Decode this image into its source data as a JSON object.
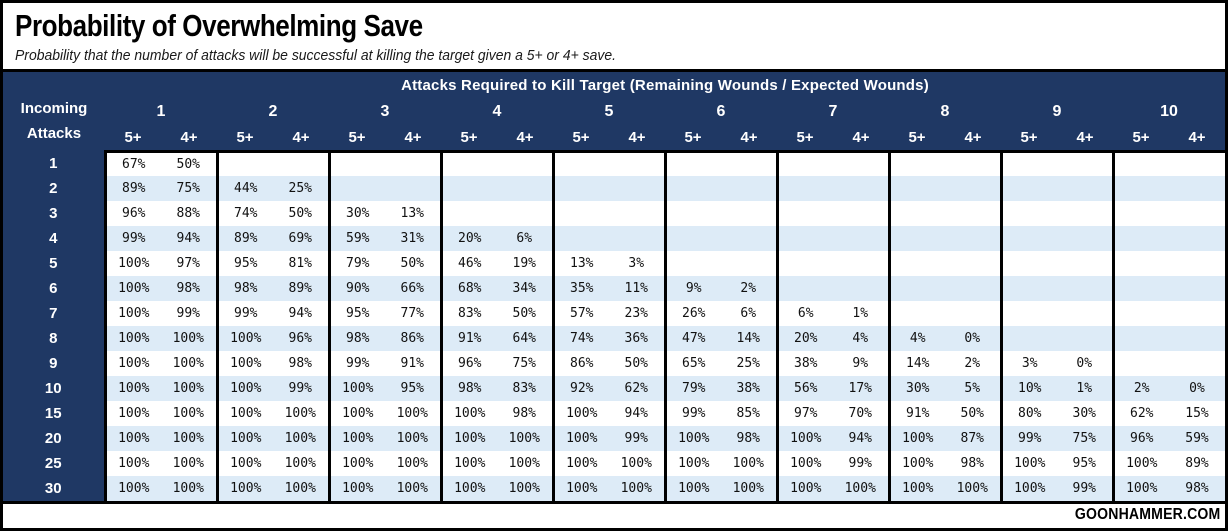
{
  "title": "Probability of Overwhelming Save",
  "subtitle": "Probability that the number of attacks will be successful at killing the target given a 5+ or 4+ save.",
  "footer": {
    "brand": "GOONHAMMER.COM"
  },
  "colors": {
    "header_navy": "#1F3864",
    "stripe_blue": "#DDEBF7",
    "border_black": "#000000",
    "background_white": "#FFFFFF"
  },
  "chart_data": {
    "type": "table",
    "title": "Probability of Overwhelming Save",
    "col_axis_title": "Attacks Required to Kill Target (Remaining Wounds / Expected Wounds)",
    "row_axis": [
      "Incoming",
      "Attacks"
    ],
    "column_groups": [
      "1",
      "2",
      "3",
      "4",
      "5",
      "6",
      "7",
      "8",
      "9",
      "10"
    ],
    "sub_columns": [
      "5+",
      "4+"
    ],
    "rows": [
      {
        "label": "1",
        "cells": [
          "67%",
          "50%",
          "",
          "",
          "",
          "",
          "",
          "",
          "",
          "",
          "",
          "",
          "",
          "",
          "",
          "",
          "",
          "",
          "",
          ""
        ]
      },
      {
        "label": "2",
        "cells": [
          "89%",
          "75%",
          "44%",
          "25%",
          "",
          "",
          "",
          "",
          "",
          "",
          "",
          "",
          "",
          "",
          "",
          "",
          "",
          "",
          "",
          ""
        ]
      },
      {
        "label": "3",
        "cells": [
          "96%",
          "88%",
          "74%",
          "50%",
          "30%",
          "13%",
          "",
          "",
          "",
          "",
          "",
          "",
          "",
          "",
          "",
          "",
          "",
          "",
          "",
          ""
        ]
      },
      {
        "label": "4",
        "cells": [
          "99%",
          "94%",
          "89%",
          "69%",
          "59%",
          "31%",
          "20%",
          "6%",
          "",
          "",
          "",
          "",
          "",
          "",
          "",
          "",
          "",
          "",
          "",
          ""
        ]
      },
      {
        "label": "5",
        "cells": [
          "100%",
          "97%",
          "95%",
          "81%",
          "79%",
          "50%",
          "46%",
          "19%",
          "13%",
          "3%",
          "",
          "",
          "",
          "",
          "",
          "",
          "",
          "",
          "",
          ""
        ]
      },
      {
        "label": "6",
        "cells": [
          "100%",
          "98%",
          "98%",
          "89%",
          "90%",
          "66%",
          "68%",
          "34%",
          "35%",
          "11%",
          "9%",
          "2%",
          "",
          "",
          "",
          "",
          "",
          "",
          "",
          ""
        ]
      },
      {
        "label": "7",
        "cells": [
          "100%",
          "99%",
          "99%",
          "94%",
          "95%",
          "77%",
          "83%",
          "50%",
          "57%",
          "23%",
          "26%",
          "6%",
          "6%",
          "1%",
          "",
          "",
          "",
          "",
          "",
          ""
        ]
      },
      {
        "label": "8",
        "cells": [
          "100%",
          "100%",
          "100%",
          "96%",
          "98%",
          "86%",
          "91%",
          "64%",
          "74%",
          "36%",
          "47%",
          "14%",
          "20%",
          "4%",
          "4%",
          "0%",
          "",
          "",
          "",
          ""
        ]
      },
      {
        "label": "9",
        "cells": [
          "100%",
          "100%",
          "100%",
          "98%",
          "99%",
          "91%",
          "96%",
          "75%",
          "86%",
          "50%",
          "65%",
          "25%",
          "38%",
          "9%",
          "14%",
          "2%",
          "3%",
          "0%",
          "",
          ""
        ]
      },
      {
        "label": "10",
        "cells": [
          "100%",
          "100%",
          "100%",
          "99%",
          "100%",
          "95%",
          "98%",
          "83%",
          "92%",
          "62%",
          "79%",
          "38%",
          "56%",
          "17%",
          "30%",
          "5%",
          "10%",
          "1%",
          "2%",
          "0%"
        ]
      },
      {
        "label": "15",
        "cells": [
          "100%",
          "100%",
          "100%",
          "100%",
          "100%",
          "100%",
          "100%",
          "98%",
          "100%",
          "94%",
          "99%",
          "85%",
          "97%",
          "70%",
          "91%",
          "50%",
          "80%",
          "30%",
          "62%",
          "15%"
        ]
      },
      {
        "label": "20",
        "cells": [
          "100%",
          "100%",
          "100%",
          "100%",
          "100%",
          "100%",
          "100%",
          "100%",
          "100%",
          "99%",
          "100%",
          "98%",
          "100%",
          "94%",
          "100%",
          "87%",
          "99%",
          "75%",
          "96%",
          "59%"
        ]
      },
      {
        "label": "25",
        "cells": [
          "100%",
          "100%",
          "100%",
          "100%",
          "100%",
          "100%",
          "100%",
          "100%",
          "100%",
          "100%",
          "100%",
          "100%",
          "100%",
          "99%",
          "100%",
          "98%",
          "100%",
          "95%",
          "100%",
          "89%"
        ]
      },
      {
        "label": "30",
        "cells": [
          "100%",
          "100%",
          "100%",
          "100%",
          "100%",
          "100%",
          "100%",
          "100%",
          "100%",
          "100%",
          "100%",
          "100%",
          "100%",
          "100%",
          "100%",
          "100%",
          "100%",
          "99%",
          "100%",
          "98%"
        ]
      }
    ]
  }
}
